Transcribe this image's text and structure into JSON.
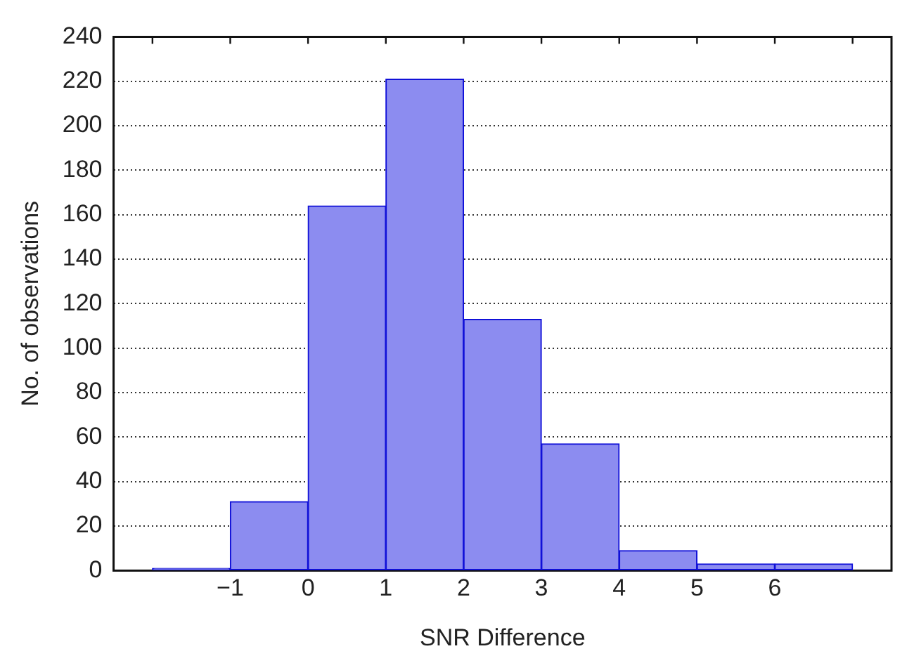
{
  "chart_data": {
    "type": "histogram",
    "xlabel": "SNR Difference",
    "ylabel": "No. of observations",
    "bins": [
      -2,
      -1,
      0,
      1,
      2,
      3,
      4,
      5,
      6,
      7
    ],
    "values": [
      1,
      31,
      164,
      221,
      113,
      57,
      9,
      3,
      3
    ],
    "color": "#8c8cf0",
    "xlim": [
      -2.5,
      7.5
    ],
    "xticks": [
      {
        "value": -2,
        "label": null
      },
      -1,
      0,
      1,
      2,
      3,
      4,
      5,
      6,
      {
        "value": 7,
        "label": null
      }
    ],
    "ylim": [
      0,
      240
    ],
    "yticks": [
      0,
      20,
      40,
      60,
      80,
      100,
      120,
      140,
      160,
      180,
      200,
      220,
      240
    ],
    "grid": "y"
  }
}
